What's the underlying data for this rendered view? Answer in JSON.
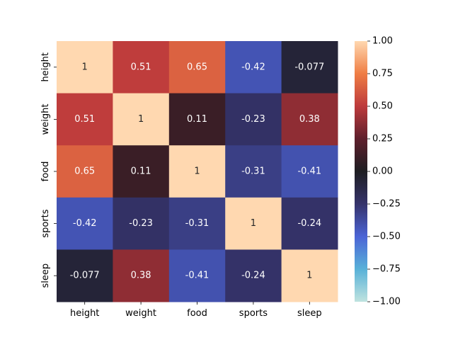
{
  "chart_data": {
    "type": "heatmap",
    "x_categories": [
      "height",
      "weight",
      "food",
      "sports",
      "sleep"
    ],
    "y_categories": [
      "height",
      "weight",
      "food",
      "sports",
      "sleep"
    ],
    "values": [
      [
        1,
        0.51,
        0.65,
        -0.42,
        -0.077
      ],
      [
        0.51,
        1,
        0.11,
        -0.23,
        0.38
      ],
      [
        0.65,
        0.11,
        1,
        -0.31,
        -0.41
      ],
      [
        -0.42,
        -0.23,
        -0.31,
        1,
        -0.24
      ],
      [
        -0.077,
        0.38,
        -0.41,
        -0.24,
        1
      ]
    ],
    "cell_labels": [
      [
        "1",
        "0.51",
        "0.65",
        "-0.42",
        "-0.077"
      ],
      [
        "0.51",
        "1",
        "0.11",
        "-0.23",
        "0.38"
      ],
      [
        "0.65",
        "0.11",
        "1",
        "-0.31",
        "-0.41"
      ],
      [
        "-0.42",
        "-0.23",
        "-0.31",
        "1",
        "-0.24"
      ],
      [
        "-0.077",
        "0.38",
        "-0.41",
        "-0.24",
        "1"
      ]
    ],
    "vmin": -1,
    "vmax": 1,
    "colormap": "icefire",
    "colorbar_ticks": [
      1.0,
      0.75,
      0.5,
      0.25,
      0.0,
      -0.25,
      -0.5,
      -0.75,
      -1.0
    ],
    "colorbar_tick_labels": [
      "1.00",
      "0.75",
      "0.50",
      "0.25",
      "0.00",
      "−0.25",
      "−0.50",
      "−0.75",
      "−1.00"
    ],
    "colorbar_position": "right",
    "grid": false,
    "title": "",
    "xlabel": "",
    "ylabel": ""
  }
}
